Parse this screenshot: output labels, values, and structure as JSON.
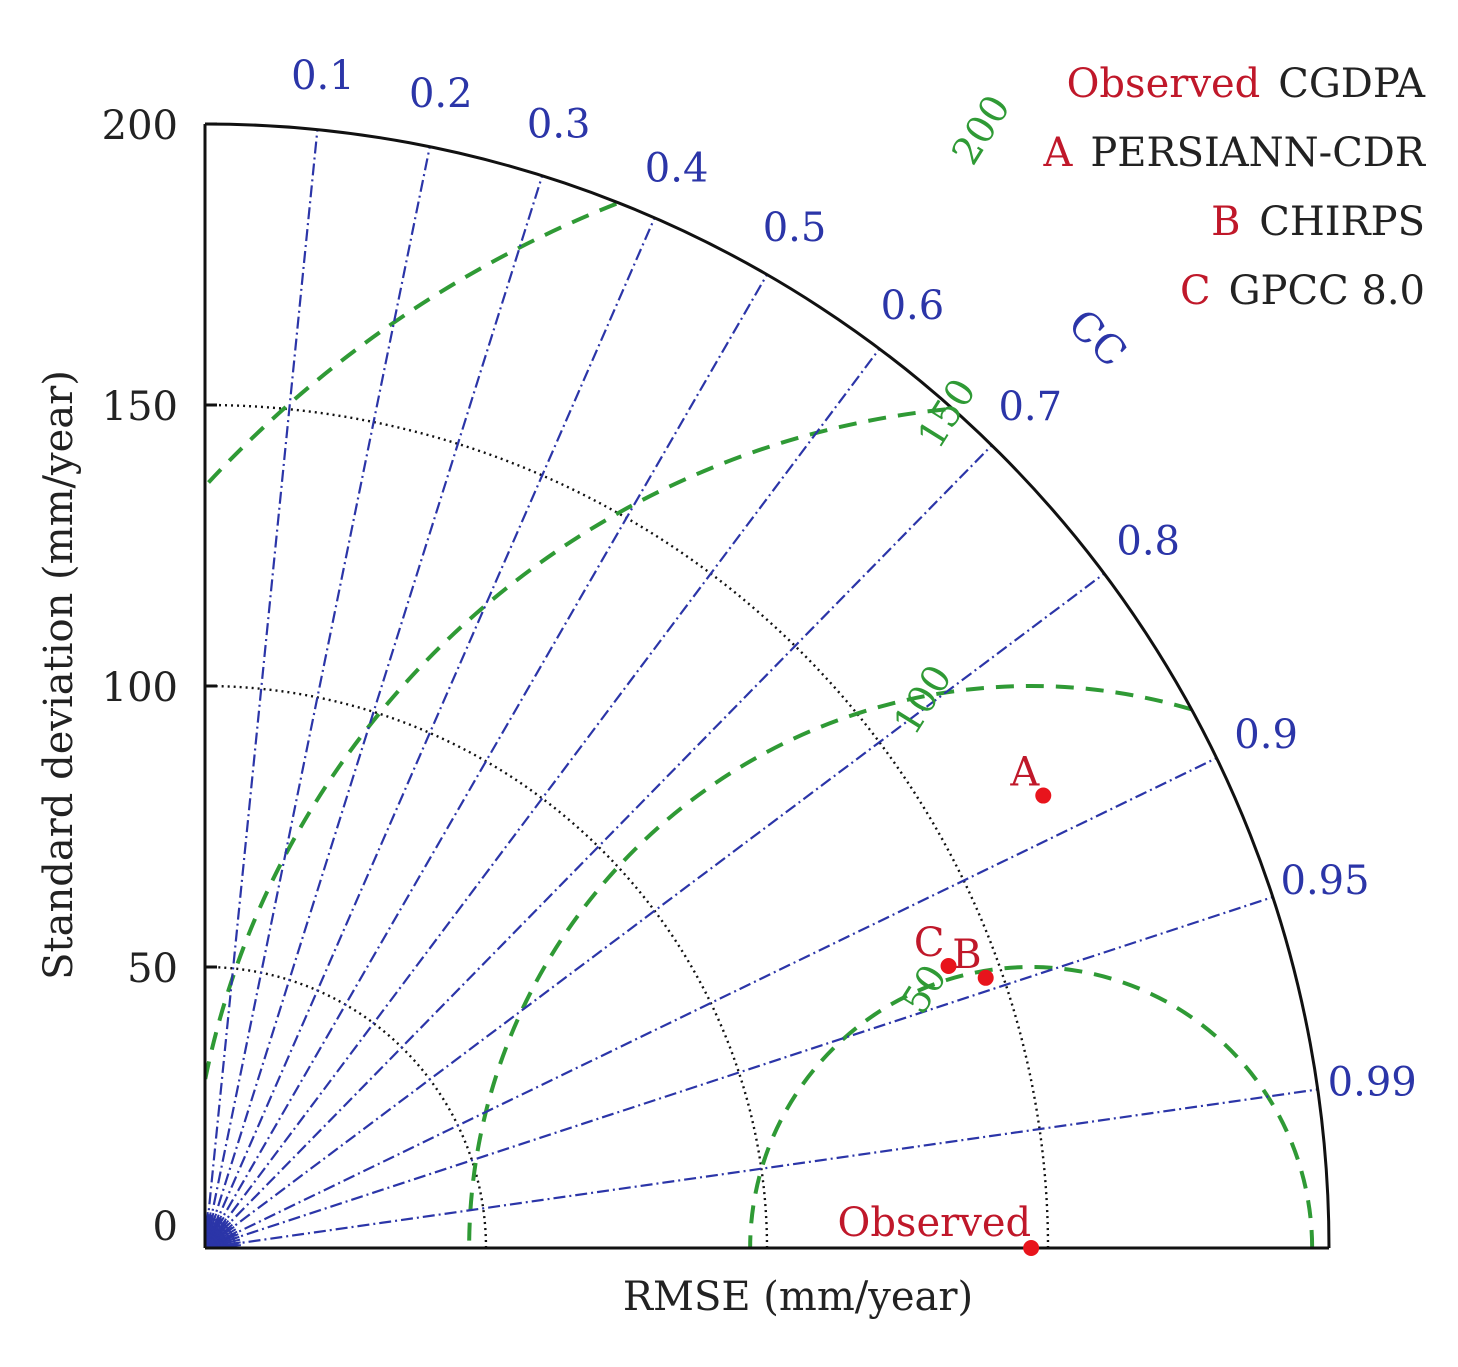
{
  "chart_data": {
    "type": "scatter",
    "subtype": "taylor-diagram",
    "ylabel": "Standard deviation (mm/year)",
    "xlabel": "RMSE (mm/year)",
    "std_range": [
      0,
      200
    ],
    "std_ticks": [
      "0",
      "50",
      "100",
      "150",
      "200"
    ],
    "std_ticks_values": [
      0,
      50,
      100,
      150,
      200
    ],
    "cc_label": "CC",
    "cc_ticks": [
      {
        "value": 0.1,
        "label": "0.1"
      },
      {
        "value": 0.2,
        "label": "0.2"
      },
      {
        "value": 0.3,
        "label": "0.3"
      },
      {
        "value": 0.4,
        "label": "0.4"
      },
      {
        "value": 0.5,
        "label": "0.5"
      },
      {
        "value": 0.6,
        "label": "0.6"
      },
      {
        "value": 0.7,
        "label": "0.7"
      },
      {
        "value": 0.8,
        "label": "0.8"
      },
      {
        "value": 0.9,
        "label": "0.9"
      },
      {
        "value": 0.95,
        "label": "0.95"
      },
      {
        "value": 0.99,
        "label": "0.99"
      }
    ],
    "rmse_contours": [
      {
        "value": 50,
        "label": "50"
      },
      {
        "value": 100,
        "label": "100"
      },
      {
        "value": 150,
        "label": "150"
      },
      {
        "value": 200,
        "label": "200"
      }
    ],
    "reference": {
      "label": "Observed",
      "name": "CGDPA",
      "std": 147
    },
    "points": [
      {
        "marker": "A",
        "name": "PERSIANN-CDR",
        "std": 169.5,
        "cc": 0.88
      },
      {
        "marker": "B",
        "name": "CHIRPS",
        "std": 147,
        "cc": 0.945
      },
      {
        "marker": "C",
        "name": "GPCC 8.0",
        "std": 141.5,
        "cc": 0.935
      }
    ],
    "legend": [
      {
        "key": "Observed",
        "label": "CGDPA"
      },
      {
        "key": "A",
        "label": "PERSIANN-CDR"
      },
      {
        "key": "B",
        "label": "CHIRPS"
      },
      {
        "key": "C",
        "label": "GPCC 8.0"
      }
    ],
    "colors": {
      "cc_lines": "#2b35a8",
      "rmse_contours": "#2f9a35",
      "std_arcs": "#111111",
      "points": "#e8141c",
      "marker_text": "#c0182a",
      "legend_text": "#222222",
      "axis": "#111111"
    }
  }
}
